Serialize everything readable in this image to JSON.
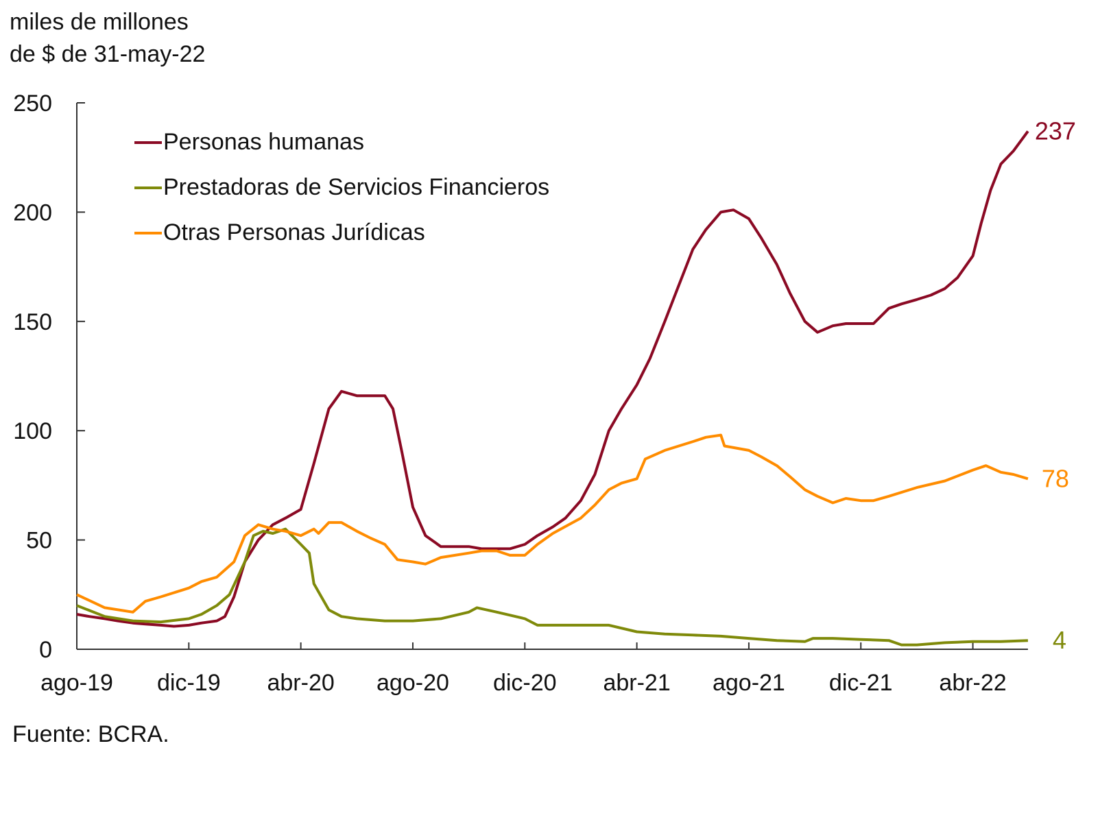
{
  "chart_data": {
    "type": "line",
    "ylabel": [
      "miles de millones",
      "de $ de 31-may-22"
    ],
    "source": "Fuente: BCRA.",
    "ylim": [
      0,
      250
    ],
    "yticks": [
      0,
      50,
      100,
      150,
      200,
      250
    ],
    "xlim": [
      "2019-08-01",
      "2022-05-31"
    ],
    "xticks": [
      {
        "date": "2019-08-01",
        "label": "ago-19"
      },
      {
        "date": "2019-12-01",
        "label": "dic-19"
      },
      {
        "date": "2020-04-01",
        "label": "abr-20"
      },
      {
        "date": "2020-08-01",
        "label": "ago-20"
      },
      {
        "date": "2020-12-01",
        "label": "dic-20"
      },
      {
        "date": "2021-04-01",
        "label": "abr-21"
      },
      {
        "date": "2021-08-01",
        "label": "ago-21"
      },
      {
        "date": "2021-12-01",
        "label": "dic-21"
      },
      {
        "date": "2022-04-01",
        "label": "abr-22"
      }
    ],
    "grid": false,
    "legend_position": "top-left",
    "series": [
      {
        "name": "Personas humanas",
        "color": "#8b0a24",
        "end_label": "237",
        "points": [
          [
            "2019-08-01",
            16
          ],
          [
            "2019-08-15",
            15
          ],
          [
            "2019-09-01",
            14
          ],
          [
            "2019-09-15",
            13
          ],
          [
            "2019-10-01",
            12
          ],
          [
            "2019-10-15",
            11.5
          ],
          [
            "2019-11-01",
            11
          ],
          [
            "2019-11-15",
            10.5
          ],
          [
            "2019-12-01",
            11
          ],
          [
            "2019-12-15",
            12
          ],
          [
            "2020-01-01",
            13
          ],
          [
            "2020-01-10",
            15
          ],
          [
            "2020-01-20",
            24
          ],
          [
            "2020-02-01",
            40
          ],
          [
            "2020-02-15",
            50
          ],
          [
            "2020-03-01",
            57
          ],
          [
            "2020-03-15",
            60
          ],
          [
            "2020-04-01",
            64
          ],
          [
            "2020-04-15",
            85
          ],
          [
            "2020-05-01",
            110
          ],
          [
            "2020-05-15",
            118
          ],
          [
            "2020-06-01",
            116
          ],
          [
            "2020-06-15",
            116
          ],
          [
            "2020-07-01",
            116
          ],
          [
            "2020-07-10",
            110
          ],
          [
            "2020-07-20",
            90
          ],
          [
            "2020-08-01",
            65
          ],
          [
            "2020-08-15",
            52
          ],
          [
            "2020-09-01",
            47
          ],
          [
            "2020-09-15",
            47
          ],
          [
            "2020-10-01",
            47
          ],
          [
            "2020-10-15",
            46
          ],
          [
            "2020-11-01",
            46
          ],
          [
            "2020-11-15",
            46
          ],
          [
            "2020-12-01",
            48
          ],
          [
            "2020-12-15",
            52
          ],
          [
            "2021-01-01",
            56
          ],
          [
            "2021-01-15",
            60
          ],
          [
            "2021-02-01",
            68
          ],
          [
            "2021-02-15",
            80
          ],
          [
            "2021-03-01",
            100
          ],
          [
            "2021-03-15",
            110
          ],
          [
            "2021-04-01",
            121
          ],
          [
            "2021-04-15",
            133
          ],
          [
            "2021-05-01",
            150
          ],
          [
            "2021-05-15",
            165
          ],
          [
            "2021-06-01",
            183
          ],
          [
            "2021-06-15",
            192
          ],
          [
            "2021-07-01",
            200
          ],
          [
            "2021-07-15",
            201
          ],
          [
            "2021-08-01",
            197
          ],
          [
            "2021-08-15",
            188
          ],
          [
            "2021-09-01",
            176
          ],
          [
            "2021-09-15",
            163
          ],
          [
            "2021-10-01",
            150
          ],
          [
            "2021-10-15",
            145
          ],
          [
            "2021-11-01",
            148
          ],
          [
            "2021-11-15",
            149
          ],
          [
            "2021-12-01",
            149
          ],
          [
            "2021-12-15",
            149
          ],
          [
            "2022-01-01",
            156
          ],
          [
            "2022-01-15",
            158
          ],
          [
            "2022-02-01",
            160
          ],
          [
            "2022-02-15",
            162
          ],
          [
            "2022-03-01",
            165
          ],
          [
            "2022-03-15",
            170
          ],
          [
            "2022-04-01",
            180
          ],
          [
            "2022-04-10",
            195
          ],
          [
            "2022-04-20",
            210
          ],
          [
            "2022-05-01",
            222
          ],
          [
            "2022-05-15",
            228
          ],
          [
            "2022-05-31",
            237
          ]
        ]
      },
      {
        "name": "Prestadoras de Servicios Financieros",
        "color": "#7f8a0a",
        "end_label": "4",
        "points": [
          [
            "2019-08-01",
            20
          ],
          [
            "2019-09-01",
            15
          ],
          [
            "2019-10-01",
            13
          ],
          [
            "2019-11-01",
            12.5
          ],
          [
            "2019-12-01",
            14
          ],
          [
            "2019-12-15",
            16
          ],
          [
            "2020-01-01",
            20
          ],
          [
            "2020-01-15",
            25
          ],
          [
            "2020-02-01",
            40
          ],
          [
            "2020-02-10",
            52
          ],
          [
            "2020-02-20",
            54
          ],
          [
            "2020-03-01",
            53
          ],
          [
            "2020-03-15",
            55
          ],
          [
            "2020-04-01",
            48
          ],
          [
            "2020-04-10",
            44
          ],
          [
            "2020-04-15",
            30
          ],
          [
            "2020-05-01",
            18
          ],
          [
            "2020-05-15",
            15
          ],
          [
            "2020-06-01",
            14
          ],
          [
            "2020-07-01",
            13
          ],
          [
            "2020-08-01",
            13
          ],
          [
            "2020-09-01",
            14
          ],
          [
            "2020-10-01",
            17
          ],
          [
            "2020-10-10",
            19
          ],
          [
            "2020-11-01",
            17
          ],
          [
            "2020-12-01",
            14
          ],
          [
            "2020-12-15",
            11
          ],
          [
            "2021-01-01",
            11
          ],
          [
            "2021-02-01",
            11
          ],
          [
            "2021-03-01",
            11
          ],
          [
            "2021-04-01",
            8
          ],
          [
            "2021-05-01",
            7
          ],
          [
            "2021-06-01",
            6.5
          ],
          [
            "2021-07-01",
            6
          ],
          [
            "2021-08-01",
            5
          ],
          [
            "2021-09-01",
            4
          ],
          [
            "2021-10-01",
            3.5
          ],
          [
            "2021-10-10",
            5
          ],
          [
            "2021-11-01",
            5
          ],
          [
            "2021-12-01",
            4.5
          ],
          [
            "2022-01-01",
            4
          ],
          [
            "2022-01-15",
            2
          ],
          [
            "2022-02-01",
            2
          ],
          [
            "2022-03-01",
            3
          ],
          [
            "2022-04-01",
            3.5
          ],
          [
            "2022-05-01",
            3.5
          ],
          [
            "2022-05-31",
            4
          ]
        ]
      },
      {
        "name": "Otras Personas Jurídicas",
        "color": "#ff8c00",
        "end_label": "78",
        "points": [
          [
            "2019-08-01",
            25
          ],
          [
            "2019-09-01",
            19
          ],
          [
            "2019-10-01",
            17
          ],
          [
            "2019-10-15",
            22
          ],
          [
            "2019-11-01",
            24
          ],
          [
            "2019-12-01",
            28
          ],
          [
            "2019-12-15",
            31
          ],
          [
            "2020-01-01",
            33
          ],
          [
            "2020-01-20",
            40
          ],
          [
            "2020-02-01",
            52
          ],
          [
            "2020-02-15",
            57
          ],
          [
            "2020-03-01",
            55
          ],
          [
            "2020-03-15",
            54
          ],
          [
            "2020-04-01",
            52
          ],
          [
            "2020-04-15",
            55
          ],
          [
            "2020-04-20",
            53
          ],
          [
            "2020-05-01",
            58
          ],
          [
            "2020-05-15",
            58
          ],
          [
            "2020-06-01",
            54
          ],
          [
            "2020-06-15",
            51
          ],
          [
            "2020-07-01",
            48
          ],
          [
            "2020-07-15",
            41
          ],
          [
            "2020-08-01",
            40
          ],
          [
            "2020-08-15",
            39
          ],
          [
            "2020-09-01",
            42
          ],
          [
            "2020-10-01",
            44
          ],
          [
            "2020-10-15",
            45
          ],
          [
            "2020-11-01",
            45
          ],
          [
            "2020-11-15",
            43
          ],
          [
            "2020-12-01",
            43
          ],
          [
            "2020-12-15",
            48
          ],
          [
            "2021-01-01",
            53
          ],
          [
            "2021-02-01",
            60
          ],
          [
            "2021-02-15",
            66
          ],
          [
            "2021-03-01",
            73
          ],
          [
            "2021-03-15",
            76
          ],
          [
            "2021-04-01",
            78
          ],
          [
            "2021-04-10",
            87
          ],
          [
            "2021-05-01",
            91
          ],
          [
            "2021-06-01",
            95
          ],
          [
            "2021-06-15",
            97
          ],
          [
            "2021-07-01",
            98
          ],
          [
            "2021-07-05",
            93
          ],
          [
            "2021-08-01",
            91
          ],
          [
            "2021-08-15",
            88
          ],
          [
            "2021-09-01",
            84
          ],
          [
            "2021-09-15",
            79
          ],
          [
            "2021-10-01",
            73
          ],
          [
            "2021-10-15",
            70
          ],
          [
            "2021-11-01",
            67
          ],
          [
            "2021-11-15",
            69
          ],
          [
            "2021-12-01",
            68
          ],
          [
            "2021-12-15",
            68
          ],
          [
            "2022-01-01",
            70
          ],
          [
            "2022-02-01",
            74
          ],
          [
            "2022-03-01",
            77
          ],
          [
            "2022-04-01",
            82
          ],
          [
            "2022-04-15",
            84
          ],
          [
            "2022-05-01",
            81
          ],
          [
            "2022-05-15",
            80
          ],
          [
            "2022-05-31",
            78
          ]
        ]
      }
    ]
  }
}
